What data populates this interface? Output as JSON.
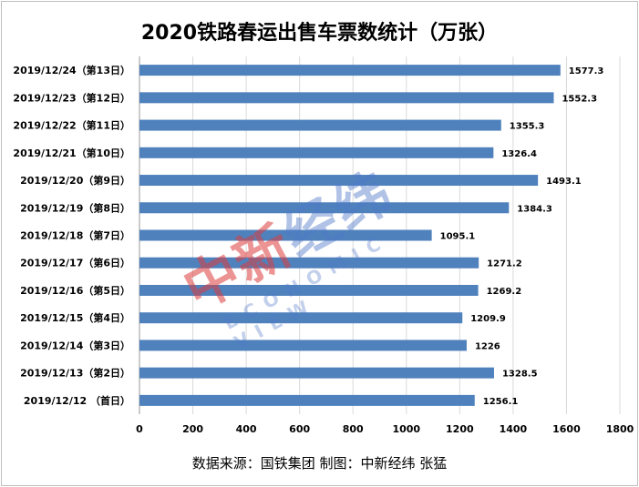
{
  "chart_data": {
    "type": "bar",
    "orientation": "horizontal",
    "title": "2020铁路春运出售车票数统计（万张）",
    "categories": [
      "2019/12/24（第13日）",
      "2019/12/23（第12日）",
      "2019/12/22（第11日）",
      "2019/12/21（第10日）",
      "2019/12/20（第9日）",
      "2019/12/19（第8日）",
      "2019/12/18（第7日）",
      "2019/12/17（第6日）",
      "2019/12/16（第5日）",
      "2019/12/15（第4日）",
      "2019/12/14（第3日）",
      "2019/12/13（第2日）",
      "2019/12/12 （首日）"
    ],
    "values": [
      1577.3,
      1552.3,
      1355.3,
      1326.4,
      1493.1,
      1384.3,
      1095.1,
      1271.2,
      1269.2,
      1209.9,
      1226,
      1328.5,
      1256.1
    ],
    "value_labels": [
      "1577.3",
      "1552.3",
      "1355.3",
      "1326.4",
      "1493.1",
      "1384.3",
      "1095.1",
      "1271.2",
      "1269.2",
      "1209.9",
      "1226",
      "1328.5",
      "1256.1"
    ],
    "xlim": [
      0,
      1800
    ],
    "x_ticks": [
      0,
      200,
      400,
      600,
      800,
      1000,
      1200,
      1400,
      1600,
      1800
    ],
    "grid": true,
    "bar_color": "#4f81bd",
    "xlabel": "",
    "ylabel": ""
  },
  "source_text": "数据来源：国铁集团  制图：中新经纬  张猛",
  "watermark": {
    "brand_part1": "中新",
    "brand_part2": "经纬",
    "sub": "ECONOMIC VIEW"
  }
}
